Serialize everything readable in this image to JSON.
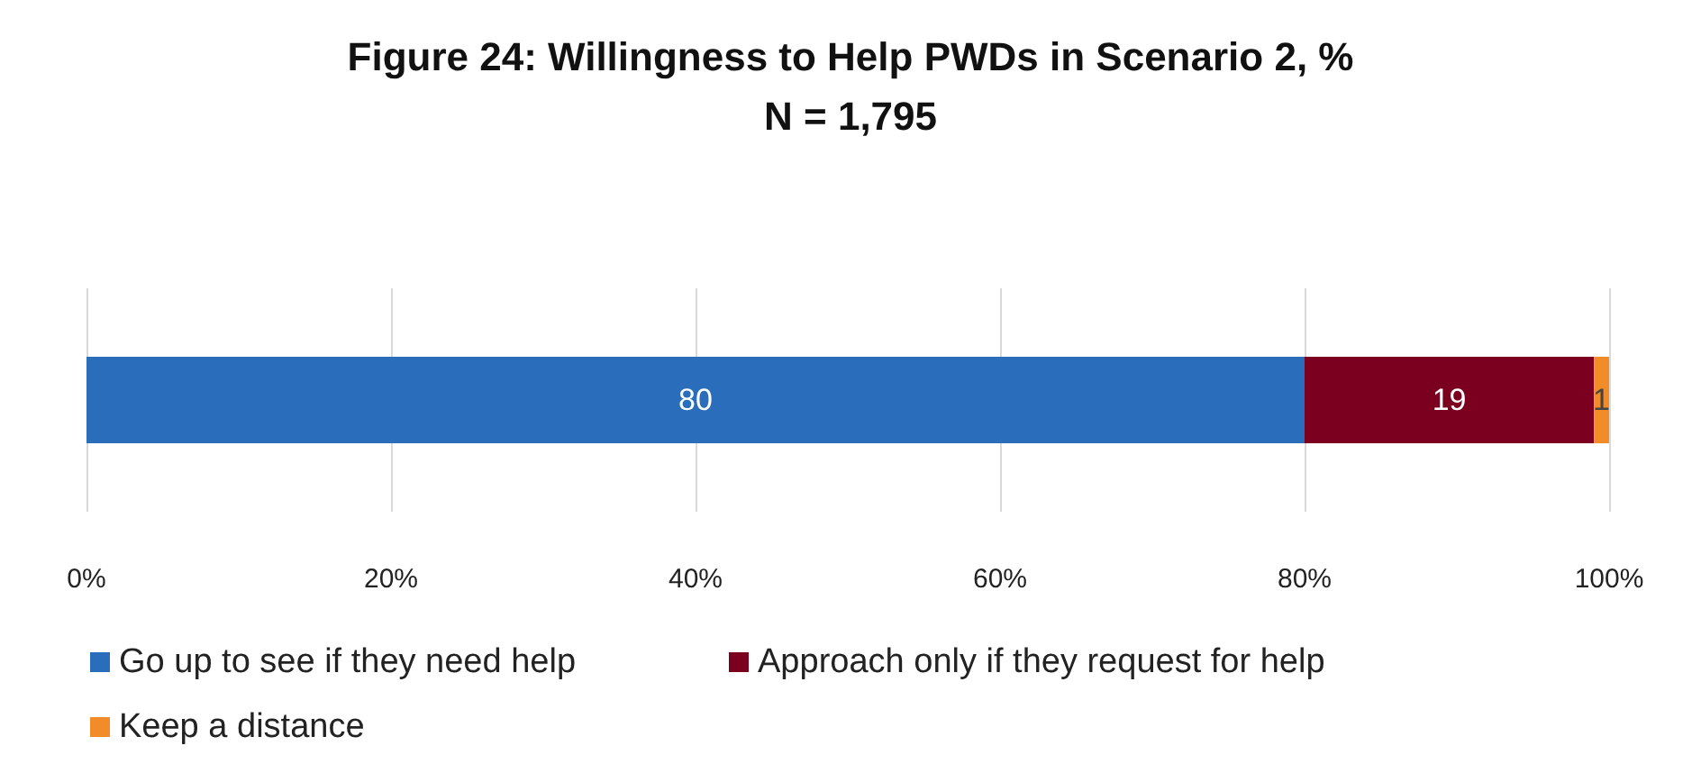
{
  "chart_data": {
    "type": "bar",
    "orientation": "horizontal",
    "stacked": true,
    "title": "Figure 24: Willingness to Help PWDs in Scenario 2, %",
    "subtitle": "N = 1,795",
    "categories": [
      null
    ],
    "series": [
      {
        "name": "Go up to see if they need help",
        "color": "#2a6ebb",
        "values": [
          80
        ]
      },
      {
        "name": "Approach only if they request for help",
        "color": "#7b0020",
        "values": [
          19
        ]
      },
      {
        "name": "Keep a distance",
        "color": "#f28c28",
        "values": [
          1
        ]
      }
    ],
    "xlim": [
      0,
      100
    ],
    "xticks": [
      {
        "value": 0,
        "label": "0%"
      },
      {
        "value": 20,
        "label": "20%"
      },
      {
        "value": 40,
        "label": "40%"
      },
      {
        "value": 60,
        "label": "60%"
      },
      {
        "value": 80,
        "label": "80%"
      },
      {
        "value": 100,
        "label": "100%"
      }
    ],
    "grid": "x",
    "legend": "bottom",
    "data_labels": true
  }
}
